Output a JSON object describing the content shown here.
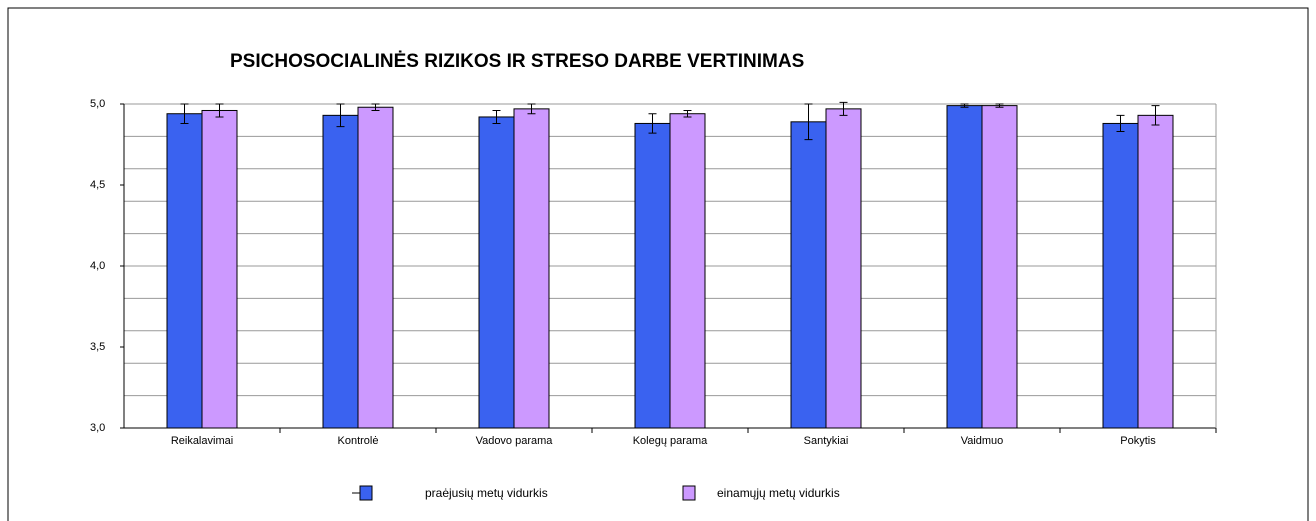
{
  "chart_data": {
    "type": "bar",
    "title": "PSICHOSOCIALINĖS RIZIKOS IR STRESO DARBE VERTINIMAS",
    "categories": [
      "Reikalavimai",
      "Kontrolė",
      "Vadovo parama",
      "Kolegų parama",
      "Santykiai",
      "Vaidmuo",
      "Pokytis"
    ],
    "series": [
      {
        "name": "praėjusių metų vidurkis",
        "color": "#3a62f0",
        "values": [
          4.94,
          4.93,
          4.92,
          4.88,
          4.89,
          4.99,
          4.88
        ],
        "errors": [
          0.06,
          0.07,
          0.04,
          0.06,
          0.11,
          0.01,
          0.05
        ]
      },
      {
        "name": "einamųjų metų vidurkis",
        "color": "#cc99ff",
        "values": [
          4.96,
          4.98,
          4.97,
          4.94,
          4.97,
          4.99,
          4.93
        ],
        "errors": [
          0.04,
          0.02,
          0.03,
          0.02,
          0.04,
          0.01,
          0.06
        ]
      }
    ],
    "ylim": [
      3,
      5
    ],
    "yticks": [
      {
        "value": 3,
        "label": "3,0"
      },
      {
        "value": 3.5,
        "label": "3,5"
      },
      {
        "value": 4,
        "label": "4,0"
      },
      {
        "value": 4.5,
        "label": "4,5"
      },
      {
        "value": 5,
        "label": "5,0"
      }
    ],
    "ygrid": [
      3.2,
      3.4,
      3.6,
      3.8,
      4,
      4.2,
      4.4,
      4.6,
      4.8,
      5
    ],
    "grid": true
  }
}
